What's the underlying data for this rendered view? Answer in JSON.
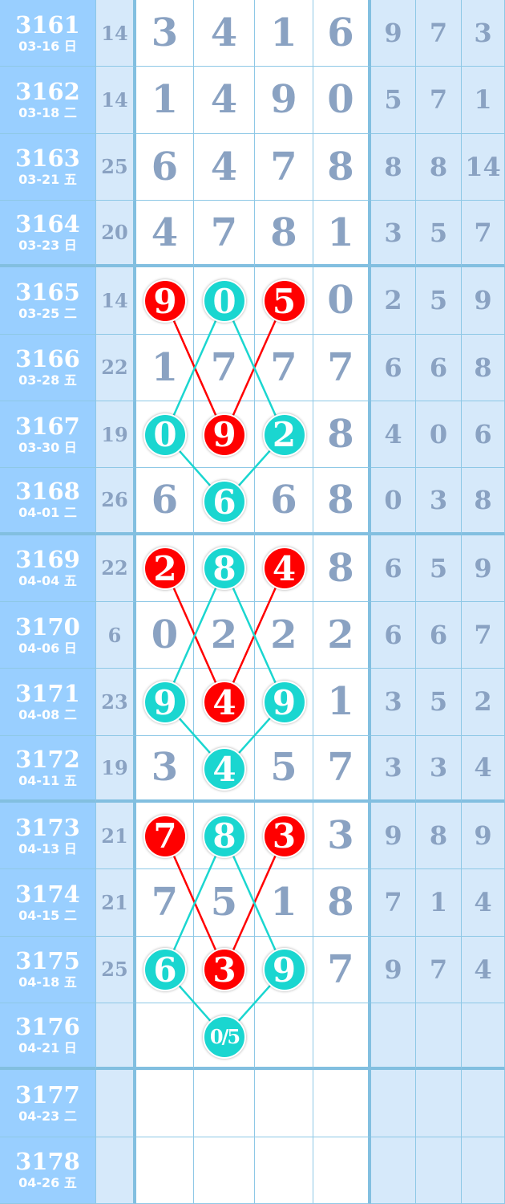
{
  "colors": {
    "red": "#ff0000",
    "teal": "#1ad6d0",
    "period_bg": "#99cfff",
    "digit": "#8aa2c2"
  },
  "rows": [
    {
      "period": "3161",
      "date": "03-16 日",
      "sum": "14",
      "main": [
        "3",
        "4",
        "1",
        "6"
      ],
      "side": [
        "9",
        "7",
        "3"
      ]
    },
    {
      "period": "3162",
      "date": "03-18 二",
      "sum": "14",
      "main": [
        "1",
        "4",
        "9",
        "0"
      ],
      "side": [
        "5",
        "7",
        "1"
      ]
    },
    {
      "period": "3163",
      "date": "03-21 五",
      "sum": "25",
      "main": [
        "6",
        "4",
        "7",
        "8"
      ],
      "side": [
        "8",
        "8",
        "14"
      ]
    },
    {
      "period": "3164",
      "date": "03-23 日",
      "sum": "20",
      "main": [
        "4",
        "7",
        "8",
        "1"
      ],
      "side": [
        "3",
        "5",
        "7"
      ]
    },
    {
      "period": "3165",
      "date": "03-25 二",
      "sum": "14",
      "main": [
        "9",
        "0",
        "5",
        "0"
      ],
      "side": [
        "2",
        "5",
        "9"
      ]
    },
    {
      "period": "3166",
      "date": "03-28 五",
      "sum": "22",
      "main": [
        "1",
        "7",
        "7",
        "7"
      ],
      "side": [
        "6",
        "6",
        "8"
      ]
    },
    {
      "period": "3167",
      "date": "03-30 日",
      "sum": "19",
      "main": [
        "0",
        "9",
        "2",
        "8"
      ],
      "side": [
        "4",
        "0",
        "6"
      ]
    },
    {
      "period": "3168",
      "date": "04-01 二",
      "sum": "26",
      "main": [
        "6",
        "6",
        "6",
        "8"
      ],
      "side": [
        "0",
        "3",
        "8"
      ]
    },
    {
      "period": "3169",
      "date": "04-04 五",
      "sum": "22",
      "main": [
        "2",
        "8",
        "4",
        "8"
      ],
      "side": [
        "6",
        "5",
        "9"
      ]
    },
    {
      "period": "3170",
      "date": "04-06 日",
      "sum": "6",
      "main": [
        "0",
        "2",
        "2",
        "2"
      ],
      "side": [
        "6",
        "6",
        "7"
      ]
    },
    {
      "period": "3171",
      "date": "04-08 二",
      "sum": "23",
      "main": [
        "9",
        "4",
        "9",
        "1"
      ],
      "side": [
        "3",
        "5",
        "2"
      ]
    },
    {
      "period": "3172",
      "date": "04-11 五",
      "sum": "19",
      "main": [
        "3",
        "4",
        "5",
        "7"
      ],
      "side": [
        "3",
        "3",
        "4"
      ]
    },
    {
      "period": "3173",
      "date": "04-13 日",
      "sum": "21",
      "main": [
        "7",
        "8",
        "3",
        "3"
      ],
      "side": [
        "9",
        "8",
        "9"
      ]
    },
    {
      "period": "3174",
      "date": "04-15 二",
      "sum": "21",
      "main": [
        "7",
        "5",
        "1",
        "8"
      ],
      "side": [
        "7",
        "1",
        "4"
      ]
    },
    {
      "period": "3175",
      "date": "04-18 五",
      "sum": "25",
      "main": [
        "6",
        "3",
        "9",
        "7"
      ],
      "side": [
        "9",
        "7",
        "4"
      ]
    },
    {
      "period": "3176",
      "date": "04-21 日",
      "sum": "",
      "main": [
        "",
        "0/5",
        "",
        ""
      ],
      "side": [
        "",
        "",
        ""
      ]
    },
    {
      "period": "3177",
      "date": "04-23 二",
      "sum": "",
      "main": [
        "",
        "",
        "",
        ""
      ],
      "side": [
        "",
        "",
        ""
      ]
    },
    {
      "period": "3178",
      "date": "04-26 五",
      "sum": "",
      "main": [
        "",
        "",
        "",
        ""
      ],
      "side": [
        "",
        "",
        ""
      ]
    }
  ],
  "highlights": [
    {
      "row": 4,
      "col": 0,
      "color": "red"
    },
    {
      "row": 4,
      "col": 1,
      "color": "teal"
    },
    {
      "row": 4,
      "col": 2,
      "color": "red"
    },
    {
      "row": 6,
      "col": 0,
      "color": "teal"
    },
    {
      "row": 6,
      "col": 1,
      "color": "red"
    },
    {
      "row": 6,
      "col": 2,
      "color": "teal"
    },
    {
      "row": 7,
      "col": 1,
      "color": "teal"
    },
    {
      "row": 8,
      "col": 0,
      "color": "red"
    },
    {
      "row": 8,
      "col": 1,
      "color": "teal"
    },
    {
      "row": 8,
      "col": 2,
      "color": "red"
    },
    {
      "row": 10,
      "col": 0,
      "color": "teal"
    },
    {
      "row": 10,
      "col": 1,
      "color": "red"
    },
    {
      "row": 10,
      "col": 2,
      "color": "teal"
    },
    {
      "row": 11,
      "col": 1,
      "color": "teal"
    },
    {
      "row": 12,
      "col": 0,
      "color": "red"
    },
    {
      "row": 12,
      "col": 1,
      "color": "teal"
    },
    {
      "row": 12,
      "col": 2,
      "color": "red"
    },
    {
      "row": 14,
      "col": 0,
      "color": "teal"
    },
    {
      "row": 14,
      "col": 1,
      "color": "red"
    },
    {
      "row": 14,
      "col": 2,
      "color": "teal"
    },
    {
      "row": 15,
      "col": 1,
      "color": "teal"
    }
  ],
  "links": [
    {
      "from": [
        4,
        0
      ],
      "to": [
        6,
        1
      ],
      "color": "red"
    },
    {
      "from": [
        4,
        2
      ],
      "to": [
        6,
        1
      ],
      "color": "red"
    },
    {
      "from": [
        4,
        1
      ],
      "to": [
        6,
        0
      ],
      "color": "teal"
    },
    {
      "from": [
        4,
        1
      ],
      "to": [
        6,
        2
      ],
      "color": "teal"
    },
    {
      "from": [
        6,
        0
      ],
      "to": [
        7,
        1
      ],
      "color": "teal"
    },
    {
      "from": [
        6,
        2
      ],
      "to": [
        7,
        1
      ],
      "color": "teal"
    },
    {
      "from": [
        8,
        0
      ],
      "to": [
        10,
        1
      ],
      "color": "red"
    },
    {
      "from": [
        8,
        2
      ],
      "to": [
        10,
        1
      ],
      "color": "red"
    },
    {
      "from": [
        8,
        1
      ],
      "to": [
        10,
        0
      ],
      "color": "teal"
    },
    {
      "from": [
        8,
        1
      ],
      "to": [
        10,
        2
      ],
      "color": "teal"
    },
    {
      "from": [
        10,
        0
      ],
      "to": [
        11,
        1
      ],
      "color": "teal"
    },
    {
      "from": [
        10,
        2
      ],
      "to": [
        11,
        1
      ],
      "color": "teal"
    },
    {
      "from": [
        12,
        0
      ],
      "to": [
        14,
        1
      ],
      "color": "red"
    },
    {
      "from": [
        12,
        2
      ],
      "to": [
        14,
        1
      ],
      "color": "red"
    },
    {
      "from": [
        12,
        1
      ],
      "to": [
        14,
        0
      ],
      "color": "teal"
    },
    {
      "from": [
        12,
        1
      ],
      "to": [
        14,
        2
      ],
      "color": "teal"
    },
    {
      "from": [
        14,
        0
      ],
      "to": [
        15,
        1
      ],
      "color": "teal"
    },
    {
      "from": [
        14,
        2
      ],
      "to": [
        15,
        1
      ],
      "color": "teal"
    }
  ]
}
